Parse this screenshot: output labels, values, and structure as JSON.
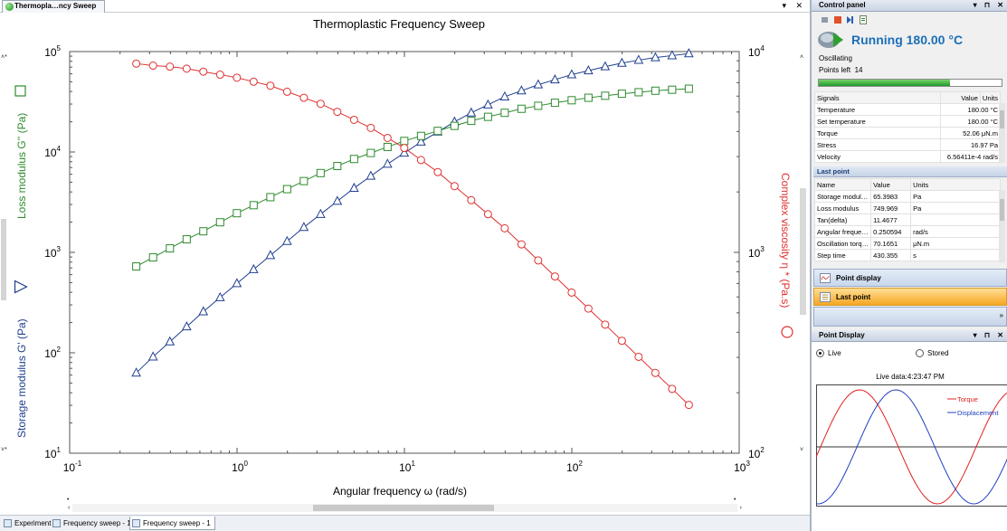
{
  "document": {
    "tab_title": "Thermopla…ncy Sweep",
    "tab_controls": "▾ ✕"
  },
  "chart_data": {
    "type": "scatter",
    "title": "Thermoplastic Frequency Sweep",
    "xlabel": "Angular frequency  ω  (rad/s)",
    "ylabel_left_storage": "Storage modulus  G'  (Pa)",
    "ylabel_left_loss": "Loss modulus  G''  (Pa)",
    "ylabel_right": "Complex viscosity  η *  (Pa.s)",
    "x_scale": "log",
    "y_scale_left": "log",
    "y_scale_right": "log",
    "xlim": [
      0.1,
      1000
    ],
    "ylim_left": [
      10,
      100000
    ],
    "ylim_right": [
      100,
      10000
    ],
    "x_tick_labels": [
      {
        "base": "10",
        "exp": "-1"
      },
      {
        "base": "10",
        "exp": "0"
      },
      {
        "base": "10",
        "exp": "1"
      },
      {
        "base": "10",
        "exp": "2"
      },
      {
        "base": "10",
        "exp": "3"
      }
    ],
    "y_left_tick_labels": [
      {
        "base": "10",
        "exp": "1"
      },
      {
        "base": "10",
        "exp": "2"
      },
      {
        "base": "10",
        "exp": "3"
      },
      {
        "base": "10",
        "exp": "4"
      },
      {
        "base": "10",
        "exp": "5"
      }
    ],
    "y_right_tick_labels": [
      {
        "base": "10",
        "exp": "2"
      },
      {
        "base": "10",
        "exp": "3"
      },
      {
        "base": "10",
        "exp": "4"
      }
    ],
    "x": [
      0.25,
      0.315,
      0.397,
      0.5,
      0.629,
      0.792,
      0.998,
      1.256,
      1.582,
      1.991,
      2.507,
      3.156,
      3.973,
      5.002,
      6.297,
      7.928,
      9.981,
      12.566,
      15.82,
      19.917,
      25.074,
      31.567,
      39.741,
      50.032,
      62.988,
      79.298,
      99.833,
      125.68,
      158.23,
      199.2,
      250.78,
      315.72,
      397.47,
      500.4
    ],
    "series": [
      {
        "axis": "left",
        "color": "#1f3e8f",
        "marker": "triangle",
        "values": [
          63.1,
          91.2,
          129,
          182,
          257,
          355,
          490,
          676,
          933,
          1288,
          1778,
          2399,
          3236,
          4365,
          5754,
          7586,
          9772,
          12590,
          15850,
          19950,
          24550,
          29510,
          35480,
          40740,
          46770,
          52480,
          58880,
          64570,
          70790,
          76740,
          82220,
          87100,
          91200,
          95500
        ]
      },
      {
        "axis": "left",
        "color": "#2e8b2e",
        "marker": "square",
        "values": [
          724,
          891,
          1096,
          1349,
          1622,
          1995,
          2455,
          2951,
          3548,
          4266,
          5129,
          6166,
          7244,
          8511,
          9772,
          11220,
          12880,
          14450,
          16220,
          18200,
          20420,
          22390,
          24550,
          26920,
          28840,
          30900,
          32740,
          34670,
          36310,
          38020,
          39360,
          40740,
          41690,
          42660
        ]
      },
      {
        "axis": "right",
        "color": "#e03030",
        "marker": "circle",
        "values": [
          8710,
          8511,
          8414,
          8222,
          7943,
          7674,
          7413,
          7079,
          6761,
          6310,
          5888,
          5495,
          5012,
          4571,
          4169,
          3715,
          3311,
          2884,
          2512,
          2138,
          1820,
          1549,
          1318,
          1096,
          912,
          759,
          631,
          525,
          437,
          363,
          302,
          251,
          209,
          174
        ]
      }
    ]
  },
  "bottom_tabs": [
    {
      "label": "Experiment"
    },
    {
      "label": "Frequency sweep - 1"
    },
    {
      "label": "Frequency sweep - 1"
    }
  ],
  "control_panel": {
    "title": "Control panel",
    "title_controls": "▾ ⊓ ✕",
    "status": "Running 180.00 °C",
    "mode": "Oscillating",
    "points_left_label": "Points left",
    "points_left_value": "14",
    "progress": 0.72,
    "signals_headers": [
      "Signals",
      "Value",
      "Units"
    ],
    "signals": [
      {
        "name": "Temperature",
        "value": "180.00 °C",
        "unit": ""
      },
      {
        "name": "Set temperature",
        "value": "180.00 °C",
        "unit": ""
      },
      {
        "name": "Torque",
        "value": "52.06 μN.m",
        "unit": ""
      },
      {
        "name": "Stress",
        "value": "16.97 Pa",
        "unit": ""
      },
      {
        "name": "Velocity",
        "value": "6.56411e-4 rad/s",
        "unit": ""
      }
    ],
    "last_point_title": "Last point",
    "last_point_headers": [
      "Name",
      "Value",
      "Units"
    ],
    "last_point": [
      {
        "name": "Storage modul…",
        "value": "65.3983",
        "unit": "Pa"
      },
      {
        "name": "Loss modulus",
        "value": "749.969",
        "unit": "Pa"
      },
      {
        "name": "Tan(delta)",
        "value": "11.4677",
        "unit": ""
      },
      {
        "name": "Angular freque…",
        "value": "0.250594",
        "unit": "rad/s"
      },
      {
        "name": "Oscillation torq…",
        "value": "70.1651",
        "unit": "μN.m"
      },
      {
        "name": "Step time",
        "value": "430.355",
        "unit": "s"
      }
    ],
    "nav_point_display": "Point display",
    "nav_last_point": "Last point"
  },
  "point_display": {
    "title": "Point Display",
    "title_controls": "▾ ⊓ ✕",
    "radio_live": "Live",
    "radio_stored": "Stored",
    "selected": "Live",
    "live_data": "Live data:4:23:47 PM",
    "legend_torque": "Torque",
    "legend_displacement": "Displacement",
    "color_torque": "#e02020",
    "color_displacement": "#2040c0"
  }
}
